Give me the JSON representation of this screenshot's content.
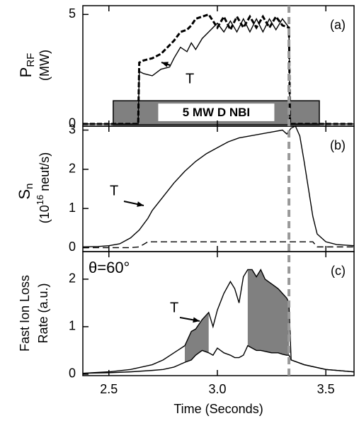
{
  "marker_x": 3.33,
  "chart_data": [
    {
      "type": "line",
      "panel_label": "(a)",
      "xlim": [
        2.38,
        3.63
      ],
      "ylim": [
        -0.1,
        5.4
      ],
      "yticks": [
        0,
        5
      ],
      "x": [
        2.38,
        2.635,
        2.64,
        2.66,
        2.7,
        2.74,
        2.78,
        2.8,
        2.83,
        2.86,
        2.88,
        2.9,
        2.93,
        2.96,
        3.0,
        3.03,
        3.06,
        3.09,
        3.12,
        3.15,
        3.18,
        3.21,
        3.24,
        3.27,
        3.3,
        3.33,
        3.335,
        3.63
      ],
      "series": [
        {
          "color": "#000000",
          "dash": true,
          "values": [
            0,
            0,
            2.8,
            2.9,
            3.0,
            3.2,
            3.6,
            3.8,
            4.2,
            4.3,
            4.5,
            4.8,
            4.9,
            5.0,
            4.4,
            4.9,
            4.3,
            4.9,
            4.4,
            4.9,
            4.4,
            4.9,
            4.4,
            4.9,
            4.5,
            4.4,
            0,
            0
          ]
        },
        {
          "color": "#000000",
          "dash": false,
          "values": [
            0,
            0,
            2.4,
            2.3,
            2.2,
            2.5,
            2.6,
            3.0,
            3.5,
            3.3,
            3.7,
            3.4,
            3.9,
            4.2,
            4.6,
            4.2,
            4.7,
            4.2,
            4.8,
            4.2,
            4.8,
            4.2,
            4.8,
            4.3,
            4.8,
            4.4,
            0,
            0
          ]
        }
      ],
      "annotation": "T",
      "ylabel": {
        "main": "P",
        "sub": "RF",
        "unit": "(MW)"
      },
      "nbi": {
        "label": "5 MW D NBI",
        "start": 2.52,
        "end": 3.47,
        "level": 1.06,
        "color": "#808080"
      }
    },
    {
      "type": "line",
      "panel_label": "(b)",
      "xlim": [
        2.38,
        3.63
      ],
      "ylim": [
        -0.1,
        3.1
      ],
      "yticks": [
        0,
        1,
        2,
        3
      ],
      "x": [
        2.38,
        2.45,
        2.5,
        2.55,
        2.6,
        2.64,
        2.68,
        2.7,
        2.75,
        2.8,
        2.85,
        2.9,
        2.95,
        3.0,
        3.05,
        3.1,
        3.15,
        3.2,
        3.25,
        3.3,
        3.32,
        3.34,
        3.36,
        3.38,
        3.4,
        3.42,
        3.44,
        3.46,
        3.5,
        3.55,
        3.63
      ],
      "series": [
        {
          "color": "#000000",
          "dash": false,
          "values": [
            0.02,
            0.03,
            0.05,
            0.1,
            0.25,
            0.45,
            0.75,
            0.95,
            1.3,
            1.65,
            1.95,
            2.2,
            2.4,
            2.55,
            2.7,
            2.8,
            2.85,
            2.9,
            2.95,
            3.0,
            2.9,
            3.05,
            3.1,
            2.85,
            2.2,
            1.5,
            0.8,
            0.35,
            0.15,
            0.08,
            0.05
          ]
        },
        {
          "color": "#000000",
          "dash": true,
          "values": [
            0,
            0,
            0,
            0,
            0,
            0.02,
            0.15,
            0.15,
            0.15,
            0.15,
            0.15,
            0.15,
            0.15,
            0.15,
            0.15,
            0.15,
            0.15,
            0.15,
            0.15,
            0.15,
            0.15,
            0.15,
            0.15,
            0.15,
            0.15,
            0.15,
            0.15,
            0.02,
            0.02,
            0.02,
            0.02
          ]
        }
      ],
      "annotation": "T",
      "ylabel": {
        "main": "S",
        "sub": "n",
        "unit_pre": "(10",
        "unit_sup": "16",
        "unit_post": " neut/s)"
      }
    },
    {
      "type": "line",
      "panel_label": "(c)",
      "xlim": [
        2.38,
        3.63
      ],
      "ylim": [
        -0.03,
        2.58
      ],
      "yticks": [
        0,
        1,
        2
      ],
      "xticks": [
        2.5,
        {
          "value": 3,
          "label": "3.0"
        },
        3.5
      ],
      "xlabel": "Time (Seconds)",
      "x": [
        2.38,
        2.5,
        2.6,
        2.7,
        2.75,
        2.8,
        2.85,
        2.88,
        2.9,
        2.93,
        2.96,
        2.98,
        3.0,
        3.03,
        3.06,
        3.08,
        3.1,
        3.12,
        3.14,
        3.16,
        3.18,
        3.2,
        3.22,
        3.25,
        3.28,
        3.3,
        3.32,
        3.33,
        3.34,
        3.4,
        3.5,
        3.63
      ],
      "series": [
        {
          "color": "#000000",
          "dash": false,
          "values": [
            0.02,
            0.05,
            0.1,
            0.2,
            0.3,
            0.45,
            0.6,
            0.9,
            0.95,
            1.15,
            1.3,
            1.0,
            1.35,
            1.7,
            1.95,
            1.8,
            1.5,
            2.05,
            2.2,
            2.2,
            2.05,
            2.2,
            2.0,
            1.9,
            1.8,
            1.7,
            1.6,
            1.5,
            0.3,
            0.2,
            0.1,
            0.05
          ]
        },
        {
          "color": "#000000",
          "dash": false,
          "values": [
            0.02,
            0.03,
            0.05,
            0.08,
            0.1,
            0.15,
            0.25,
            0.3,
            0.4,
            0.5,
            0.45,
            0.4,
            0.55,
            0.45,
            0.4,
            0.35,
            0.35,
            0.4,
            0.6,
            0.55,
            0.5,
            0.5,
            0.48,
            0.45,
            0.45,
            0.42,
            0.4,
            0.4,
            0.3,
            0.2,
            0.1,
            0.05
          ]
        }
      ],
      "shaded_ranges": [
        [
          2.85,
          2.96
        ],
        [
          3.14,
          3.33
        ]
      ],
      "shade_color": "#808080",
      "annotation": "T",
      "angle_label": "θ=60°",
      "ylabel": {
        "line1": "Fast Ion Loss",
        "line2": "Rate (a.u.)"
      }
    }
  ]
}
